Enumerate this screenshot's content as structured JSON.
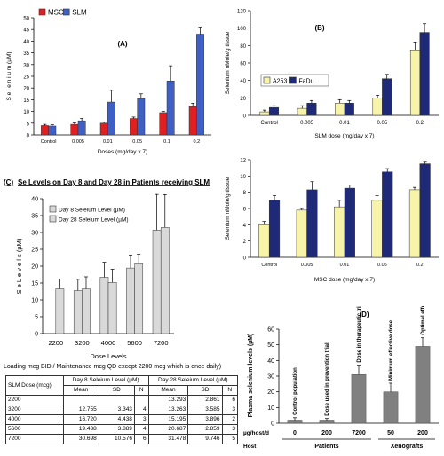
{
  "chart_data": [
    {
      "id": "A",
      "type": "bar",
      "panel_label": "(A)",
      "categories": [
        "Control",
        "0.005",
        "0.01",
        "0.05",
        "0.1",
        "0.2"
      ],
      "series": [
        {
          "name": "MSC",
          "color": "#e02020",
          "values": [
            4.0,
            4.5,
            5.0,
            7.0,
            9.5,
            12.0
          ],
          "errors": [
            0.5,
            0.6,
            0.5,
            0.6,
            0.6,
            1.5
          ]
        },
        {
          "name": "SLM",
          "color": "#3e5fc4",
          "values": [
            3.8,
            6.0,
            14.0,
            15.5,
            23.0,
            43.0
          ],
          "errors": [
            0.5,
            1.0,
            5.0,
            2.0,
            6.5,
            3.0
          ]
        }
      ],
      "xlabel": "Doses (mg/day x 7)",
      "ylabel": "S e l e n i u m   (µM)",
      "ylim": [
        0,
        50
      ],
      "yticks": [
        0,
        5,
        10,
        15,
        20,
        25,
        30,
        35,
        40,
        45,
        50
      ],
      "legend": "top-left"
    },
    {
      "id": "B",
      "type": "bar",
      "panel_label": "(B)",
      "categories": [
        "Control",
        "0.005",
        "0.01",
        "0.05",
        "0.2"
      ],
      "series": [
        {
          "name": "A253",
          "color": "#f7f3a8",
          "values": [
            4,
            8,
            14,
            20,
            75
          ],
          "errors": [
            2,
            3,
            4,
            3,
            9
          ]
        },
        {
          "name": "FaDu",
          "color": "#1e2a78",
          "values": [
            9,
            14,
            14,
            42,
            95
          ],
          "errors": [
            2,
            3,
            3,
            5,
            10
          ]
        }
      ],
      "xlabel": "SLM dose (mg/day x 7)",
      "ylabel": "Selenium nMole/g tissue",
      "ylim": [
        0,
        120
      ],
      "yticks": [
        0,
        20,
        40,
        60,
        80,
        100,
        120
      ],
      "legend": "middle-left"
    },
    {
      "id": "B2",
      "type": "bar",
      "categories": [
        "Control",
        "0.005",
        "0.01",
        "0.05",
        "0.2"
      ],
      "series": [
        {
          "name": "A253",
          "color": "#f7f3a8",
          "values": [
            4,
            5.8,
            6.2,
            7,
            8.3
          ],
          "errors": [
            0.4,
            0.2,
            0.8,
            0.6,
            0.3
          ]
        },
        {
          "name": "FaDu",
          "color": "#1e2a78",
          "values": [
            7,
            8.3,
            8.5,
            10.5,
            11.5
          ],
          "errors": [
            0.6,
            1.0,
            0.4,
            0.4,
            0.2
          ]
        }
      ],
      "xlabel": "MSC dose (mg/day x 7)",
      "ylabel": "Selenium nMole/g tissue",
      "ylim": [
        0,
        12
      ],
      "yticks": [
        0,
        2,
        4,
        6,
        8,
        10,
        12
      ]
    },
    {
      "id": "C",
      "type": "bar",
      "panel_label": "(C)",
      "title": "Se Levels on Day 8 and Day 28 in Patients receiving SLM",
      "categories": [
        "2200",
        "3200",
        "4000",
        "5600",
        "7200"
      ],
      "series": [
        {
          "name": "Day 8 Seleium Level (µM)",
          "color": "#d9d9d9",
          "values": [
            null,
            12.755,
            16.72,
            19.438,
            30.698
          ],
          "errors": [
            null,
            3.343,
            4.438,
            3.889,
            10.576
          ]
        },
        {
          "name": "Day 28 Seleium Level (µM)",
          "color": "#d9d9d9",
          "values": [
            13.293,
            13.263,
            15.195,
            20.687,
            31.478
          ],
          "errors": [
            2.861,
            3.585,
            3.896,
            2.859,
            9.746
          ]
        }
      ],
      "xlabel": "Dose Levels",
      "ylabel": "S e   L e v e l s   (µM)",
      "ylim": [
        0,
        40
      ],
      "yticks": [
        0,
        5,
        10,
        15,
        20,
        25,
        30,
        35,
        40
      ],
      "legend": "top-left",
      "caption": "Loading mcg BID / Maintenance mcg QD except 2200 mcg which is once daily)"
    },
    {
      "id": "D",
      "type": "bar",
      "panel_label": "(D)",
      "categories": [
        "0",
        "200",
        "7200",
        "50",
        "200"
      ],
      "values": [
        2,
        2,
        31,
        20,
        49
      ],
      "errors": [
        1.5,
        1.0,
        6,
        5.5,
        5.5
      ],
      "annotations": [
        "Control population",
        "Dose used in prevention trial",
        "Dose in therapeutic trials",
        "Minimum effective dose",
        "Optimal effective dose"
      ],
      "x_row_label": "µg/host/d",
      "host_row_label": "Host",
      "groups": [
        {
          "name": "Patients",
          "span": [
            0,
            2
          ]
        },
        {
          "name": "Xenografts",
          "span": [
            3,
            4
          ]
        }
      ],
      "ylabel": "Plasma selenium levels (µM)",
      "ylim": [
        0,
        60
      ],
      "yticks": [
        0,
        10,
        20,
        30,
        40,
        50,
        60
      ],
      "color": "#808080"
    }
  ],
  "table": {
    "header1": [
      "SLM Dose (mcg)",
      "Day 8 Seleium Level (µM)",
      "Day 28 Seleium Level (µM)"
    ],
    "header2": [
      "Mean",
      "SD",
      "N",
      "Mean",
      "SD",
      "N"
    ],
    "rows": [
      [
        "2200",
        "",
        "",
        "",
        "13.293",
        "2.861",
        "6"
      ],
      [
        "3200",
        "12.755",
        "3.343",
        "4",
        "13.263",
        "3.585",
        "3"
      ],
      [
        "4000",
        "16.720",
        "4.438",
        "3",
        "15.195",
        "3.896",
        "2"
      ],
      [
        "5600",
        "19.438",
        "3.889",
        "4",
        "20.687",
        "2.859",
        "3"
      ],
      [
        "7200",
        "30.698",
        "10.576",
        "6",
        "31.478",
        "9.746",
        "5"
      ]
    ]
  }
}
